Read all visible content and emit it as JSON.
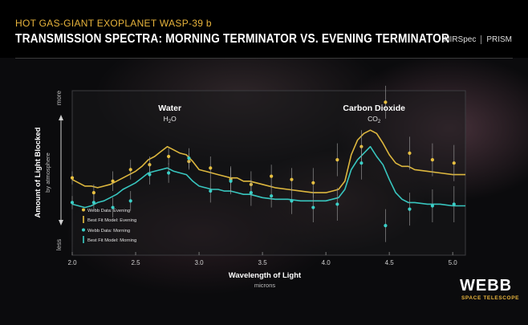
{
  "header": {
    "supertitle": "HOT GAS-GIANT EXOPLANET WASP-39 b",
    "title": "TRANSMISSION SPECTRA: MORNING TERMINATOR VS. EVENING TERMINATOR",
    "instrument": "NIRSpec",
    "mode": "PRISM"
  },
  "logo": {
    "name": "WEBB",
    "subtitle": "SPACE TELESCOPE"
  },
  "colors": {
    "evening": "#e8c040",
    "morning": "#3ad0c8",
    "accent": "#e8b43c"
  },
  "chart_data": {
    "type": "line",
    "xlabel": "Wavelength of Light",
    "xunit": "microns",
    "ylabel": "Amount of Light Blocked",
    "ysub": "by atmosphere",
    "ytop": "more",
    "ybottom": "less",
    "xlim": [
      2.0,
      5.1
    ],
    "ylim": [
      0,
      100
    ],
    "xticks": [
      "2.0",
      "2.5",
      "3.0",
      "3.5",
      "4.0",
      "4.5",
      "5.0"
    ],
    "annotations": [
      {
        "text": "Water",
        "formula": "H",
        "sub": "2",
        "suffix": "O",
        "x": 2.77
      },
      {
        "text": "Carbon Dioxide",
        "formula": "CO",
        "sub": "2",
        "suffix": "",
        "x": 4.38
      }
    ],
    "legend": [
      {
        "label": "Webb Data: Evening",
        "kind": "dot",
        "series": "evening"
      },
      {
        "label": "Best Fit Model: Evening",
        "kind": "line",
        "series": "evening"
      },
      {
        "label": "Webb Data: Morning",
        "kind": "dot",
        "series": "morning"
      },
      {
        "label": "Best Fit Model: Morning",
        "kind": "line",
        "series": "morning"
      }
    ],
    "series": [
      {
        "name": "Best Fit Model: Evening",
        "key": "evening",
        "kind": "line",
        "x": [
          2.0,
          2.05,
          2.1,
          2.15,
          2.2,
          2.25,
          2.3,
          2.35,
          2.4,
          2.45,
          2.5,
          2.55,
          2.6,
          2.65,
          2.7,
          2.75,
          2.8,
          2.85,
          2.9,
          2.95,
          3.0,
          3.05,
          3.1,
          3.15,
          3.2,
          3.25,
          3.3,
          3.35,
          3.4,
          3.45,
          3.5,
          3.6,
          3.7,
          3.8,
          3.9,
          4.0,
          4.05,
          4.1,
          4.15,
          4.2,
          4.25,
          4.3,
          4.35,
          4.4,
          4.45,
          4.5,
          4.55,
          4.6,
          4.65,
          4.7,
          4.8,
          4.9,
          5.0,
          5.1
        ],
        "y": [
          46,
          44,
          42,
          42,
          41,
          42,
          43,
          45,
          47,
          49,
          51,
          54,
          58,
          60,
          63,
          66,
          64,
          62,
          61,
          57,
          52,
          51,
          50,
          49,
          48,
          47,
          47,
          45,
          45,
          44,
          43,
          41,
          40,
          39,
          38,
          38,
          39,
          40,
          45,
          61,
          70,
          74,
          76,
          74,
          68,
          61,
          56,
          54,
          54,
          52,
          51,
          50,
          49,
          49
        ]
      },
      {
        "name": "Best Fit Model: Morning",
        "key": "morning",
        "kind": "line",
        "x": [
          2.0,
          2.05,
          2.1,
          2.15,
          2.2,
          2.25,
          2.3,
          2.35,
          2.4,
          2.45,
          2.5,
          2.55,
          2.6,
          2.65,
          2.7,
          2.75,
          2.8,
          2.85,
          2.9,
          2.95,
          3.0,
          3.05,
          3.1,
          3.15,
          3.2,
          3.25,
          3.3,
          3.35,
          3.4,
          3.45,
          3.5,
          3.6,
          3.7,
          3.8,
          3.9,
          4.0,
          4.05,
          4.1,
          4.15,
          4.2,
          4.25,
          4.3,
          4.35,
          4.4,
          4.45,
          4.5,
          4.55,
          4.6,
          4.65,
          4.7,
          4.8,
          4.9,
          5.0,
          5.1
        ],
        "y": [
          31,
          30,
          29,
          30,
          32,
          33,
          35,
          37,
          40,
          42,
          44,
          47,
          50,
          51,
          52,
          53,
          51,
          50,
          49,
          45,
          42,
          41,
          40,
          40,
          39,
          39,
          38,
          37,
          37,
          36,
          35,
          34,
          34,
          33,
          33,
          33,
          34,
          35,
          40,
          52,
          58,
          62,
          66,
          60,
          55,
          46,
          38,
          34,
          32,
          32,
          31,
          31,
          30,
          30
        ]
      },
      {
        "name": "Webb Data: Evening",
        "key": "evening",
        "kind": "points",
        "x": [
          2.0,
          2.17,
          2.32,
          2.46,
          2.61,
          2.76,
          2.92,
          3.09,
          3.25,
          3.41,
          3.57,
          3.73,
          3.9,
          4.09,
          4.28,
          4.47,
          4.66,
          4.84,
          5.01
        ],
        "y": [
          47,
          38,
          45,
          52,
          55,
          60,
          57,
          53,
          46,
          43,
          48,
          46,
          44,
          58,
          66,
          93,
          62,
          58,
          56
        ],
        "err": [
          4,
          5,
          6,
          6,
          5,
          5,
          5,
          7,
          8,
          8,
          7,
          7,
          9,
          10,
          10,
          10,
          10,
          10,
          11
        ]
      },
      {
        "name": "Webb Data: Morning",
        "key": "morning",
        "kind": "points",
        "x": [
          2.0,
          2.17,
          2.32,
          2.46,
          2.61,
          2.76,
          2.92,
          3.09,
          3.25,
          3.41,
          3.57,
          3.73,
          3.9,
          4.09,
          4.28,
          4.47,
          4.66,
          4.84,
          5.01
        ],
        "y": [
          32,
          32,
          29,
          33,
          49,
          50,
          59,
          39,
          45,
          38,
          36,
          33,
          29,
          31,
          56,
          18,
          28,
          30,
          31
        ],
        "err": [
          4,
          5,
          6,
          6,
          6,
          6,
          6,
          7,
          8,
          8,
          7,
          8,
          9,
          10,
          10,
          10,
          10,
          10,
          11
        ]
      }
    ]
  }
}
